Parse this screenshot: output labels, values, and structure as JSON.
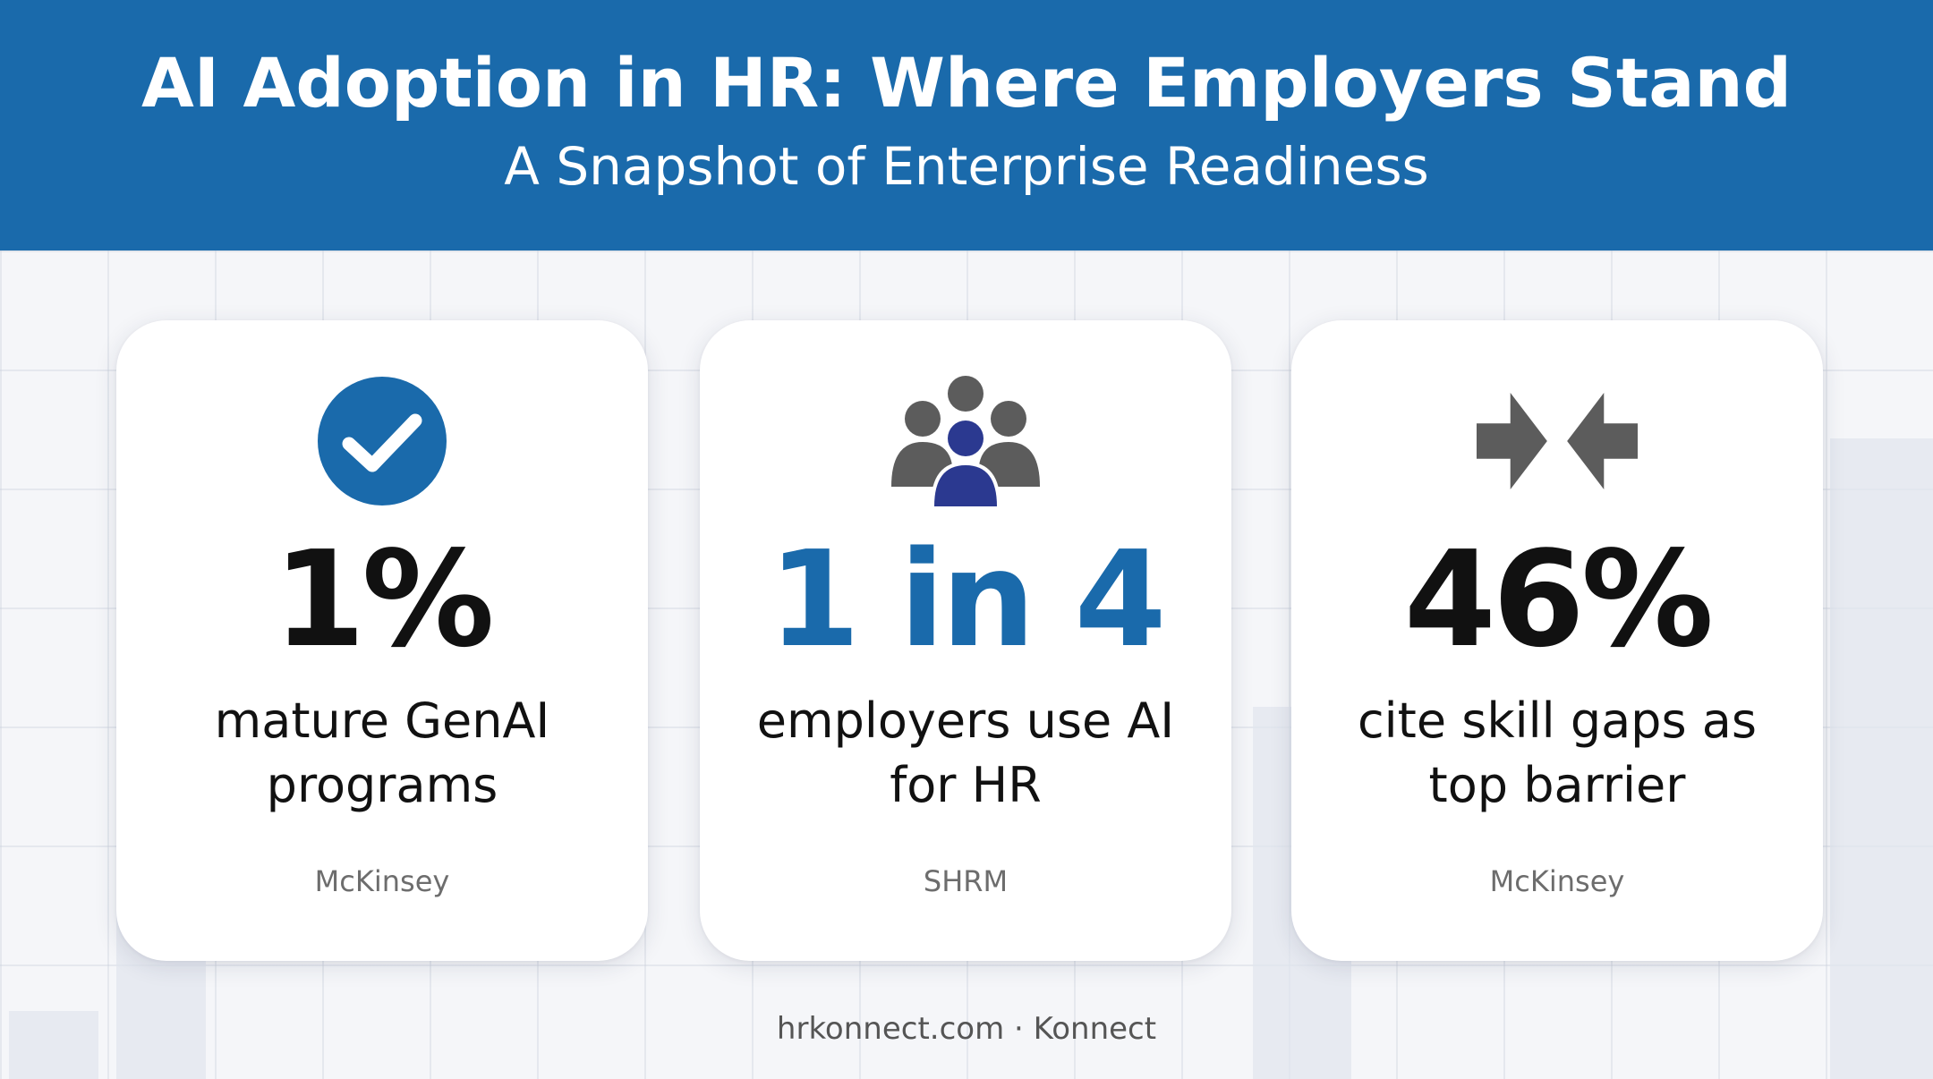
{
  "header": {
    "title": "AI Adoption in HR: Where Employers Stand",
    "subtitle": "A Snapshot of Enterprise Readiness"
  },
  "cards": [
    {
      "icon": "checkmark-circle-icon",
      "stat": "1%",
      "description": "mature GenAI programs",
      "source": "McKinsey"
    },
    {
      "icon": "people-group-icon",
      "stat": "1 in 4",
      "description": "employers use AI for HR",
      "source": "SHRM"
    },
    {
      "icon": "converging-arrows-icon",
      "stat": "46%",
      "description": "cite skill gaps as top barrier",
      "source": "McKinsey"
    }
  ],
  "footer": {
    "text": "hrkonnect.com · Konnect"
  },
  "colors": {
    "header_bg": "#1a6aab",
    "accent_blue": "#1a6aab",
    "icon_gray": "#5c5c5c",
    "icon_navy": "#2b3990"
  }
}
